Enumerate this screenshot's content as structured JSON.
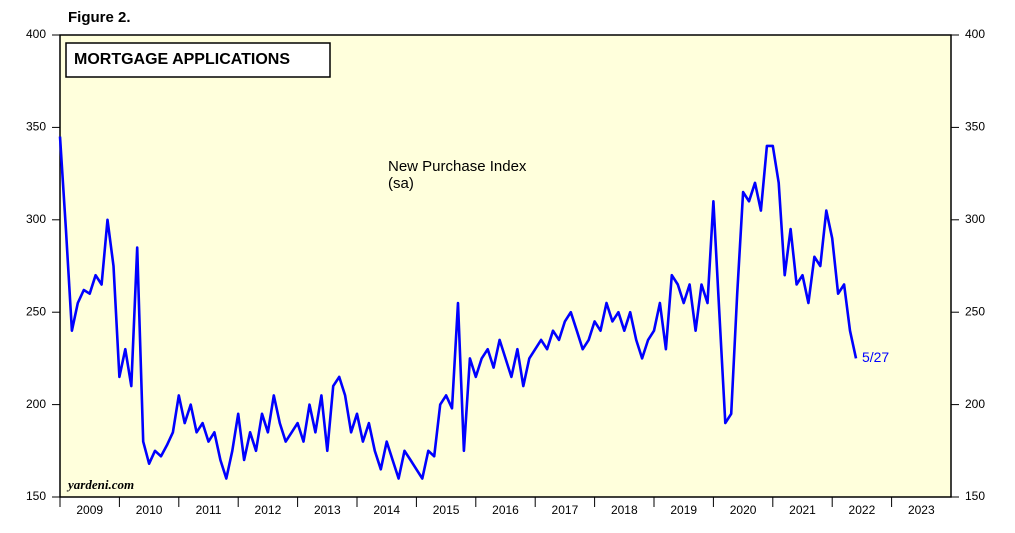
{
  "chart_data": {
    "type": "line",
    "figure_label": "Figure 2.",
    "title": "MORTGAGE APPLICATIONS",
    "annotation": [
      "New Purchase Index",
      "(sa)"
    ],
    "source": "yardeni.com",
    "end_label": "5/27",
    "xlim": [
      2009,
      2024
    ],
    "xticks": [
      {
        "value": 2009,
        "label": "2009"
      },
      {
        "value": 2010,
        "label": "2010"
      },
      {
        "value": 2011,
        "label": "2011"
      },
      {
        "value": 2012,
        "label": "2012"
      },
      {
        "value": 2013,
        "label": "2013"
      },
      {
        "value": 2014,
        "label": "2014"
      },
      {
        "value": 2015,
        "label": "2015"
      },
      {
        "value": 2016,
        "label": "2016"
      },
      {
        "value": 2017,
        "label": "2017"
      },
      {
        "value": 2018,
        "label": "2018"
      },
      {
        "value": 2019,
        "label": "2019"
      },
      {
        "value": 2020,
        "label": "2020"
      },
      {
        "value": 2021,
        "label": "2021"
      },
      {
        "value": 2022,
        "label": "2022"
      },
      {
        "value": 2023,
        "label": "2023"
      }
    ],
    "ylim": [
      150,
      400
    ],
    "yticks": [
      150,
      200,
      250,
      300,
      350,
      400
    ],
    "x": [
      2009.0,
      2009.1,
      2009.2,
      2009.3,
      2009.4,
      2009.5,
      2009.6,
      2009.7,
      2009.8,
      2009.9,
      2010.0,
      2010.1,
      2010.2,
      2010.3,
      2010.4,
      2010.5,
      2010.6,
      2010.7,
      2010.8,
      2010.9,
      2011.0,
      2011.1,
      2011.2,
      2011.3,
      2011.4,
      2011.5,
      2011.6,
      2011.7,
      2011.8,
      2011.9,
      2012.0,
      2012.1,
      2012.2,
      2012.3,
      2012.4,
      2012.5,
      2012.6,
      2012.7,
      2012.8,
      2012.9,
      2013.0,
      2013.1,
      2013.2,
      2013.3,
      2013.4,
      2013.5,
      2013.6,
      2013.7,
      2013.8,
      2013.9,
      2014.0,
      2014.1,
      2014.2,
      2014.3,
      2014.4,
      2014.5,
      2014.6,
      2014.7,
      2014.8,
      2014.9,
      2015.0,
      2015.1,
      2015.2,
      2015.3,
      2015.4,
      2015.5,
      2015.6,
      2015.7,
      2015.8,
      2015.9,
      2016.0,
      2016.1,
      2016.2,
      2016.3,
      2016.4,
      2016.5,
      2016.6,
      2016.7,
      2016.8,
      2016.9,
      2017.0,
      2017.1,
      2017.2,
      2017.3,
      2017.4,
      2017.5,
      2017.6,
      2017.7,
      2017.8,
      2017.9,
      2018.0,
      2018.1,
      2018.2,
      2018.3,
      2018.4,
      2018.5,
      2018.6,
      2018.7,
      2018.8,
      2018.9,
      2019.0,
      2019.1,
      2019.2,
      2019.3,
      2019.4,
      2019.5,
      2019.6,
      2019.7,
      2019.8,
      2019.9,
      2020.0,
      2020.1,
      2020.2,
      2020.3,
      2020.4,
      2020.5,
      2020.6,
      2020.7,
      2020.8,
      2020.9,
      2021.0,
      2021.1,
      2021.2,
      2021.3,
      2021.4,
      2021.5,
      2021.6,
      2021.7,
      2021.8,
      2021.9,
      2022.0,
      2022.1,
      2022.2,
      2022.3,
      2022.4
    ],
    "series": [
      {
        "name": "New Purchase Index",
        "color": "#0000ff",
        "values": [
          345,
          295,
          240,
          255,
          262,
          260,
          270,
          265,
          300,
          275,
          215,
          230,
          210,
          285,
          180,
          168,
          175,
          172,
          178,
          185,
          205,
          190,
          200,
          185,
          190,
          180,
          185,
          170,
          160,
          175,
          195,
          170,
          185,
          175,
          195,
          185,
          205,
          190,
          180,
          185,
          190,
          180,
          200,
          185,
          205,
          175,
          210,
          215,
          205,
          185,
          195,
          180,
          190,
          175,
          165,
          180,
          170,
          160,
          175,
          170,
          165,
          160,
          175,
          172,
          200,
          205,
          198,
          255,
          175,
          225,
          215,
          225,
          230,
          220,
          235,
          225,
          215,
          230,
          210,
          225,
          230,
          235,
          230,
          240,
          235,
          245,
          250,
          240,
          230,
          235,
          245,
          240,
          255,
          245,
          250,
          240,
          250,
          235,
          225,
          235,
          240,
          255,
          230,
          270,
          265,
          255,
          265,
          240,
          265,
          255,
          310,
          250,
          190,
          195,
          260,
          315,
          310,
          320,
          305,
          340,
          340,
          320,
          270,
          295,
          265,
          270,
          255,
          280,
          275,
          305,
          290,
          260,
          265,
          240,
          225
        ]
      }
    ]
  }
}
